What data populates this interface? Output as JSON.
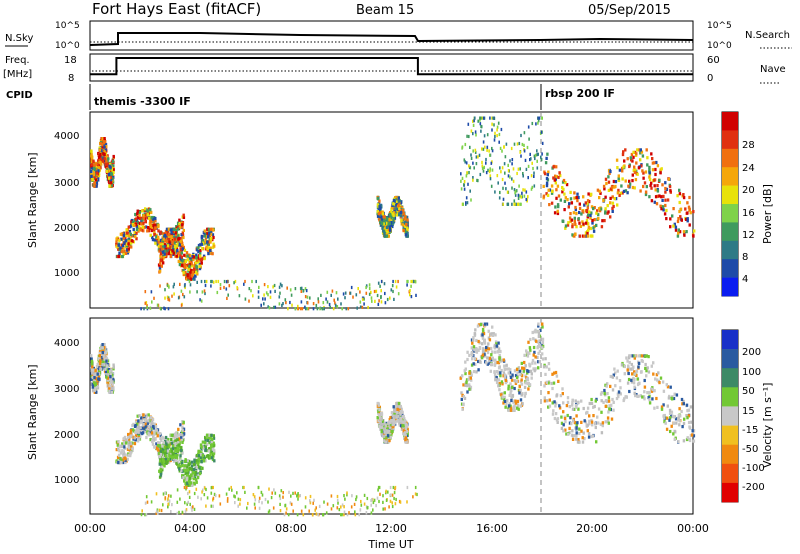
{
  "header": {
    "station": "Fort Hays East (fitACF)",
    "beam": "Beam 15",
    "date": "05/Sep/2015"
  },
  "noise_panel": {
    "left_label": "N.Sky",
    "left_ticks": [
      "10^5",
      "10^0"
    ],
    "right_label": "N.Search",
    "right_ticks": [
      "10^5",
      "10^0"
    ]
  },
  "freq_panel": {
    "left_label_top": "Freq.",
    "left_label_unit": "[MHz]",
    "left_ticks": [
      "18",
      "8"
    ],
    "right_label": "Nave",
    "right_ticks": [
      "60",
      "0"
    ],
    "freq_mhz": [
      {
        "t": 0.0,
        "v": 10.5
      },
      {
        "t": 1.05,
        "v": 10.5
      },
      {
        "t": 1.05,
        "v": 16.5
      },
      {
        "t": 13.05,
        "v": 16.5
      },
      {
        "t": 13.05,
        "v": 10.5
      },
      {
        "t": 24.0,
        "v": 10.5
      }
    ]
  },
  "cpid": {
    "label": "CPID",
    "segments": [
      {
        "t_start": 0.0,
        "name": "themis -3300 IF"
      },
      {
        "t_start": 18.0,
        "name": "rbsp 200 IF"
      }
    ]
  },
  "chart_data": [
    {
      "type": "heatmap",
      "name": "power",
      "ylabel": "Slant Range [km]",
      "yticks": [
        1000,
        2000,
        3000,
        4000
      ],
      "ylim": [
        180,
        4500
      ],
      "xlim": [
        0,
        24
      ],
      "colorbar": {
        "label": "Power [dB]",
        "ticks": [
          "4",
          "8",
          "12",
          "16",
          "20",
          "24",
          "28"
        ],
        "colors": [
          "#0a1cf0",
          "#1d4aa8",
          "#2e7a86",
          "#3f9a5e",
          "#7fd24a",
          "#e8e20a",
          "#f5a70a",
          "#f07010",
          "#e03010",
          "#d00000"
        ]
      },
      "echo_regions": [
        {
          "t": [
            0.0,
            0.9
          ],
          "r": [
            2900,
            3950
          ],
          "level": "strong"
        },
        {
          "t": [
            1.0,
            3.7
          ],
          "r": [
            1350,
            2400
          ],
          "level": "strong"
        },
        {
          "t": [
            2.7,
            4.9
          ],
          "r": [
            850,
            1950
          ],
          "level": "strong"
        },
        {
          "t": [
            11.4,
            12.6
          ],
          "r": [
            1800,
            2650
          ],
          "level": "medium"
        },
        {
          "t": [
            14.7,
            18.0
          ],
          "r": [
            2500,
            4400
          ],
          "level": "weak"
        },
        {
          "t": [
            18.0,
            24.0
          ],
          "r": [
            1800,
            3700
          ],
          "level": "strong"
        },
        {
          "t": [
            2.0,
            13.0
          ],
          "r": [
            200,
            800
          ],
          "level": "scatter"
        }
      ]
    },
    {
      "type": "heatmap",
      "name": "velocity",
      "ylabel": "Slant Range [km]",
      "yticks": [
        1000,
        2000,
        3000,
        4000
      ],
      "ylim": [
        180,
        4500
      ],
      "xlim": [
        0,
        24
      ],
      "xticks": [
        "00:00",
        "04:00",
        "08:00",
        "12:00",
        "16:00",
        "20:00",
        "00:00"
      ],
      "xlabel": "Time UT",
      "colorbar": {
        "label": "Velocity [m s⁻¹]",
        "ticks": [
          "200",
          "100",
          "50",
          "15",
          "-15",
          "-50",
          "-100",
          "-200"
        ],
        "colors": [
          "#1830c8",
          "#2a5aa0",
          "#3d8a66",
          "#72c834",
          "#c8c8c8",
          "#f0c020",
          "#f08a10",
          "#f05010",
          "#e00000"
        ]
      },
      "echo_regions": [
        {
          "t": [
            0.0,
            0.9
          ],
          "r": [
            2900,
            3950
          ],
          "level": "gray"
        },
        {
          "t": [
            1.0,
            3.7
          ],
          "r": [
            1350,
            2400
          ],
          "level": "gray"
        },
        {
          "t": [
            2.7,
            4.9
          ],
          "r": [
            850,
            1950
          ],
          "level": "green"
        },
        {
          "t": [
            11.4,
            12.6
          ],
          "r": [
            1800,
            2650
          ],
          "level": "gray"
        },
        {
          "t": [
            14.7,
            18.0
          ],
          "r": [
            2500,
            4400
          ],
          "level": "gray"
        },
        {
          "t": [
            18.0,
            24.0
          ],
          "r": [
            1800,
            3700
          ],
          "level": "gray"
        },
        {
          "t": [
            2.0,
            13.0
          ],
          "r": [
            200,
            800
          ],
          "level": "greenorange"
        }
      ]
    }
  ]
}
